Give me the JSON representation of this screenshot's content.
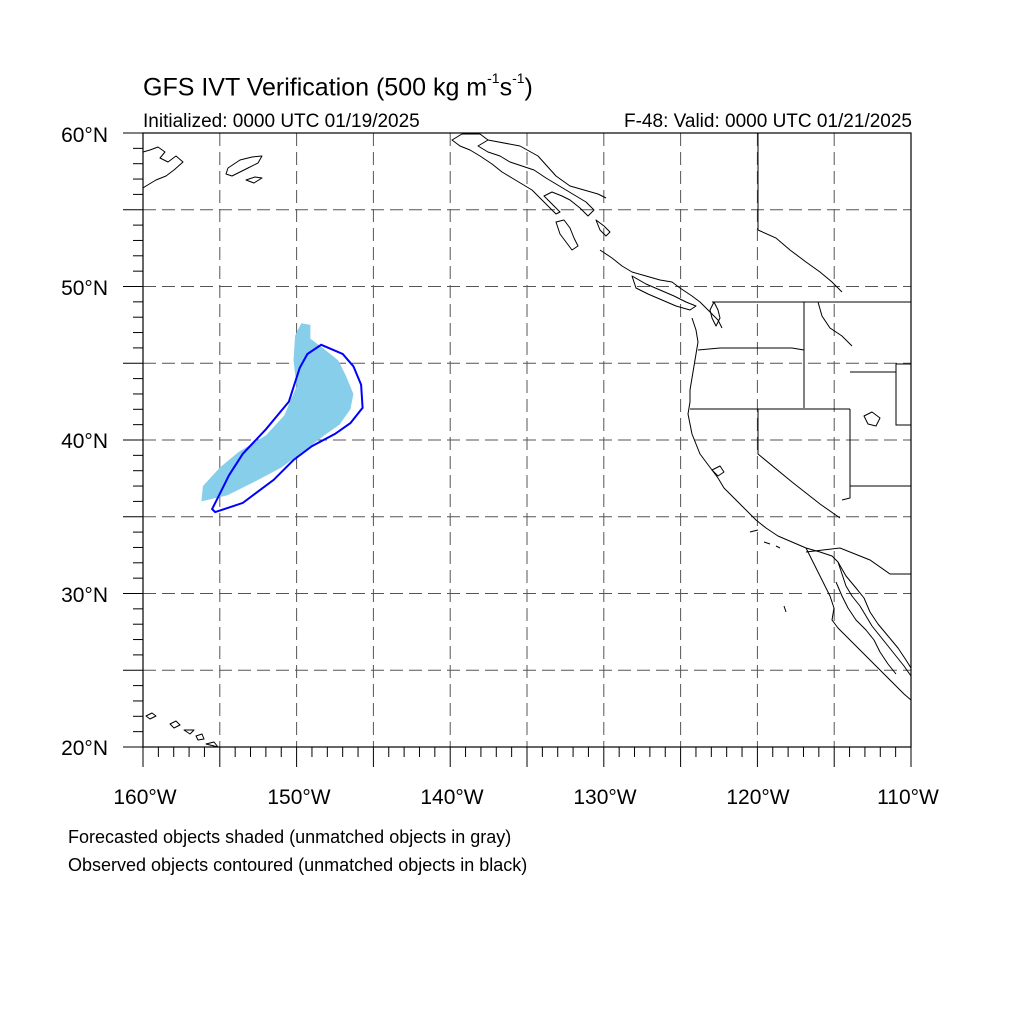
{
  "title": {
    "main": "GFS IVT Verification (500 kg m",
    "exp1": "-1",
    "mid": "s",
    "exp2": "-1",
    "end": ")"
  },
  "initialized": "Initialized: 0000 UTC 01/19/2025",
  "valid": "F-48: Valid: 0000 UTC 01/21/2025",
  "lat_labels": [
    "60°N",
    "50°N",
    "40°N",
    "30°N",
    "20°N"
  ],
  "lon_labels": [
    "160°W",
    "150°W",
    "140°W",
    "130°W",
    "120°W",
    "110°W"
  ],
  "notes": [
    "Forecasted objects shaded (unmatched objects in gray)",
    "Observed objects contoured (unmatched objects in black)"
  ],
  "extent": {
    "lon": [
      -160,
      -110
    ],
    "lat": [
      20,
      60
    ]
  },
  "grid_lines": "dashed every 5 degrees",
  "colors": {
    "forecast_fill": "#87ceeb",
    "observed_contour": "#0000ff",
    "coastline": "#000000",
    "grid": "#555555"
  },
  "forecast_object": {
    "label": "",
    "lonlat": [
      [
        -156.2,
        36
      ],
      [
        -154.5,
        36.4
      ],
      [
        -152.5,
        37.4
      ],
      [
        -151,
        38.2
      ],
      [
        -149.5,
        39.3
      ],
      [
        -148.2,
        40.3
      ],
      [
        -147.2,
        41
      ],
      [
        -146.5,
        42
      ],
      [
        -146.3,
        43
      ],
      [
        -146.8,
        44.2
      ],
      [
        -147.3,
        45.2
      ],
      [
        -148.3,
        46
      ],
      [
        -149.1,
        46.6
      ],
      [
        -149.1,
        47.5
      ],
      [
        -149.7,
        47.6
      ],
      [
        -150.1,
        46.8
      ],
      [
        -150.2,
        45.2
      ],
      [
        -150,
        43.5
      ],
      [
        -150.8,
        41.6
      ],
      [
        -152,
        40.3
      ],
      [
        -153.8,
        39.2
      ],
      [
        -155,
        38.2
      ],
      [
        -156.1,
        37
      ]
    ]
  },
  "observed_object": {
    "label": "",
    "lonlat": [
      [
        -155.3,
        35.3
      ],
      [
        -153.5,
        35.9
      ],
      [
        -151.5,
        37.4
      ],
      [
        -150.2,
        38.7
      ],
      [
        -149,
        39.6
      ],
      [
        -147.5,
        40.4
      ],
      [
        -146.5,
        41.1
      ],
      [
        -145.7,
        42.1
      ],
      [
        -145.8,
        43.6
      ],
      [
        -146.3,
        44.8
      ],
      [
        -147,
        45.6
      ],
      [
        -148.4,
        46.2
      ],
      [
        -149.3,
        45.6
      ],
      [
        -149.8,
        44.7
      ],
      [
        -150.5,
        42.5
      ],
      [
        -152,
        40.7
      ],
      [
        -153.5,
        39.1
      ],
      [
        -154.4,
        37.7
      ],
      [
        -155.1,
        36.3
      ],
      [
        -155.5,
        35.5
      ]
    ]
  }
}
